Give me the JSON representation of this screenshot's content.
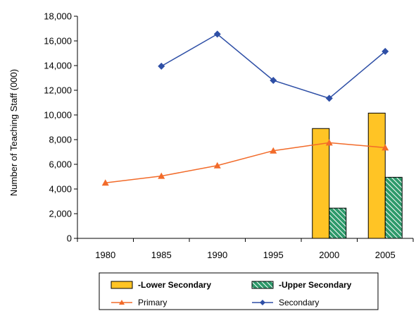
{
  "chart_data": {
    "type": "bar+line",
    "ylabel": "Number of Teaching Staff (000)",
    "xlabel": "",
    "title": "",
    "categories": [
      "1980",
      "1985",
      "1990",
      "1995",
      "2000",
      "2005"
    ],
    "y_ticks": [
      "0",
      "2,000",
      "4,000",
      "6,000",
      "8,000",
      "10,000",
      "12,000",
      "14,000",
      "16,000",
      "18,000"
    ],
    "ylim": [
      0,
      18000
    ],
    "grid": false,
    "legend_position": "bottom",
    "bar_series": [
      {
        "name": "-Lower Secondary",
        "color": "#FFC425",
        "values": [
          null,
          null,
          null,
          null,
          8900,
          10150
        ]
      },
      {
        "name": "-Upper Secondary",
        "color": "#2E9A6B",
        "pattern": "hatched",
        "values": [
          null,
          null,
          null,
          null,
          2450,
          4950
        ]
      }
    ],
    "line_series": [
      {
        "name": "Primary",
        "color": "#F26B2A",
        "marker": "triangle",
        "values": [
          4500,
          5050,
          5900,
          7100,
          7750,
          7350
        ]
      },
      {
        "name": "Secondary",
        "color": "#2E4FA6",
        "marker": "diamond",
        "values": [
          null,
          13950,
          16550,
          12800,
          11350,
          15150
        ]
      }
    ]
  }
}
